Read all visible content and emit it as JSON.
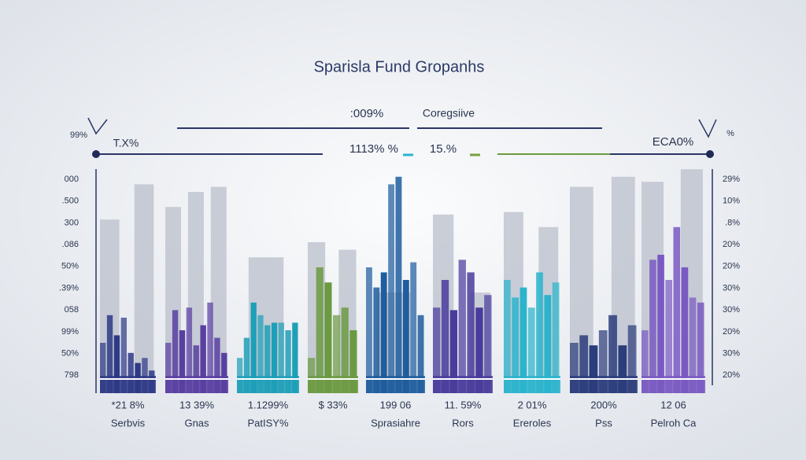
{
  "chart_data": {
    "type": "grouped-bar",
    "title": "Sparisla Fund Gropanhs",
    "header": {
      "center_left": ":009%",
      "center_right": "Coregsiive",
      "left_corner": "99%",
      "left_mark": "T.X%",
      "mid_left": "1113% %",
      "mid_right": "15.%",
      "right_mark": "ECA0%",
      "right_corner": "%"
    },
    "ylim": [
      0,
      100
    ],
    "left_axis_labels": [
      "000",
      ".500",
      "300",
      ".086",
      "50%",
      ".39%",
      "058",
      "99%",
      "50%",
      "798"
    ],
    "right_axis_labels": [
      "29%",
      "10%",
      ".8%",
      "20%",
      "20%",
      "30%",
      "30%",
      "20%",
      "30%",
      "20%"
    ],
    "back_color": "#b9bfcb",
    "groups": [
      {
        "category": "Serbvis",
        "value_label": "*21 8%",
        "color": "#2e3a86",
        "back": [
          69,
          83
        ],
        "values": [
          20,
          31,
          23,
          30,
          16,
          12,
          14,
          9
        ]
      },
      {
        "category": "Gnas",
        "value_label": "13 39%",
        "color": "#5a3fa2",
        "back": [
          74,
          80,
          82
        ],
        "values": [
          20,
          33,
          25,
          34,
          19,
          27,
          36,
          22,
          16
        ]
      },
      {
        "category": "PatISY%",
        "value_label": "1.1299%",
        "color": "#1e9fb8",
        "back": [
          54
        ],
        "values": [
          14,
          22,
          36,
          31,
          27,
          28,
          28,
          25,
          28
        ]
      },
      {
        "category": null,
        "value_label": "$ 33%",
        "color": "#6c9a42",
        "back": [
          60,
          57
        ],
        "values": [
          14,
          50,
          44,
          31,
          34,
          25
        ]
      },
      {
        "category": "Sprasiahre",
        "value_label": "199 06",
        "color": "#1f5d9e",
        "back": [
          40
        ],
        "values": [
          50,
          42,
          48,
          83,
          86,
          45,
          52,
          31
        ]
      },
      {
        "category": "Rors",
        "value_label": "11. 59%",
        "color": "#4a3c9c",
        "back": [
          71,
          40
        ],
        "values": [
          34,
          45,
          33,
          53,
          48,
          34,
          39
        ]
      },
      {
        "category": "Ereroles",
        "value_label": "2 01%",
        "color": "#2bb4cc",
        "back": [
          72,
          66
        ],
        "values": [
          45,
          38,
          42,
          34,
          48,
          39,
          44
        ]
      },
      {
        "category": "Pss",
        "value_label": "200%",
        "color": "#2c3d7c",
        "back": [
          82,
          86
        ],
        "values": [
          20,
          23,
          19,
          25,
          31,
          19,
          27
        ]
      },
      {
        "category": "Pelroh Ca",
        "value_label": "12 06",
        "color": "#7a5ac2",
        "back": [
          84,
          89
        ],
        "values": [
          25,
          53,
          55,
          45,
          66,
          50,
          38,
          36
        ]
      }
    ]
  }
}
